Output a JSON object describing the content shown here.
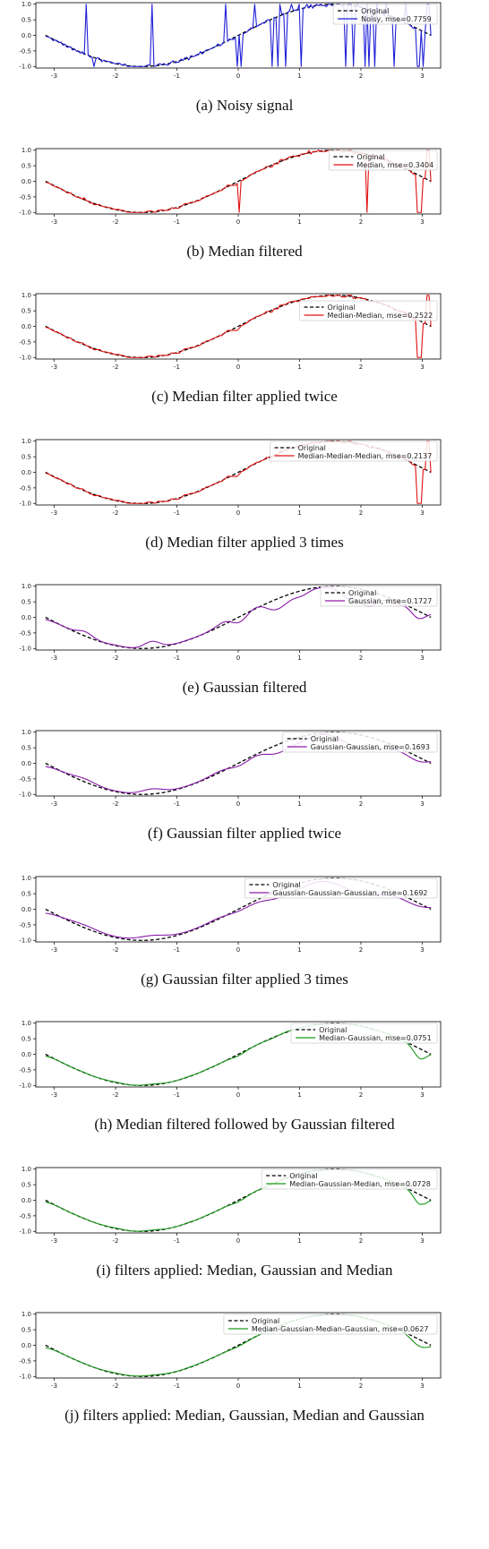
{
  "chart_data": [
    {
      "type": "line",
      "caption": "(a) Noisy signal",
      "xlim": [
        -3.3,
        3.3
      ],
      "ylim": [
        -1.05,
        1.05
      ],
      "xticks": [
        "-3",
        "-2",
        "-1",
        "0",
        "1",
        "2",
        "3"
      ],
      "yticks": [
        "-1.0",
        "-0.5",
        "0.0",
        "0.5",
        "1.0"
      ],
      "legend_position": "top-right",
      "series": [
        {
          "name": "Original",
          "style": "dashed",
          "color": "#000000"
        },
        {
          "name": "Noisy, mse=0.7759",
          "style": "solid",
          "color": "#1f1fd8",
          "filter": "noisy"
        }
      ]
    },
    {
      "type": "line",
      "caption": "(b) Median filtered",
      "xlim": [
        -3.3,
        3.3
      ],
      "ylim": [
        -1.05,
        1.05
      ],
      "xticks": [
        "-3",
        "-2",
        "-1",
        "0",
        "1",
        "2",
        "3"
      ],
      "yticks": [
        "-1.0",
        "-0.5",
        "0.0",
        "0.5",
        "1.0"
      ],
      "legend_position": "top-right",
      "series": [
        {
          "name": "Original",
          "style": "dashed",
          "color": "#000000"
        },
        {
          "name": "Median, mse=0.3404",
          "style": "solid",
          "color": "#e01010",
          "filter": "median1"
        }
      ]
    },
    {
      "type": "line",
      "caption": "(c) Median filter applied twice",
      "xlim": [
        -3.3,
        3.3
      ],
      "ylim": [
        -1.05,
        1.05
      ],
      "xticks": [
        "-3",
        "-2",
        "-1",
        "0",
        "1",
        "2",
        "3"
      ],
      "yticks": [
        "-1.0",
        "-0.5",
        "0.0",
        "0.5",
        "1.0"
      ],
      "legend_position": "right",
      "series": [
        {
          "name": "Original",
          "style": "dashed",
          "color": "#000000"
        },
        {
          "name": "Median-Median, mse=0.2522",
          "style": "solid",
          "color": "#e01010",
          "filter": "median2"
        }
      ]
    },
    {
      "type": "line",
      "caption": "(d) Median filter applied 3 times",
      "xlim": [
        -3.3,
        3.3
      ],
      "ylim": [
        -1.05,
        1.05
      ],
      "xticks": [
        "-3",
        "-2",
        "-1",
        "0",
        "1",
        "2",
        "3"
      ],
      "yticks": [
        "-1.0",
        "-0.5",
        "0.0",
        "0.5",
        "1.0"
      ],
      "legend_position": "top-right",
      "series": [
        {
          "name": "Original",
          "style": "dashed",
          "color": "#000000"
        },
        {
          "name": "Median-Median-Median, mse=0.2137",
          "style": "solid",
          "color": "#e01010",
          "filter": "median3"
        }
      ]
    },
    {
      "type": "line",
      "caption": "(e) Gaussian filtered",
      "xlim": [
        -3.3,
        3.3
      ],
      "ylim": [
        -1.05,
        1.05
      ],
      "xticks": [
        "-3",
        "-2",
        "-1",
        "0",
        "1",
        "2",
        "3"
      ],
      "yticks": [
        "-1.0",
        "-0.5",
        "0.0",
        "0.5",
        "1.0"
      ],
      "legend_position": "top-right",
      "series": [
        {
          "name": "Original",
          "style": "dashed",
          "color": "#000000"
        },
        {
          "name": "Gaussian, mse=0.1727",
          "style": "solid",
          "color": "#8a1aa8",
          "filter": "gauss1"
        }
      ]
    },
    {
      "type": "line",
      "caption": "(f) Gaussian filter applied twice",
      "xlim": [
        -3.3,
        3.3
      ],
      "ylim": [
        -1.05,
        1.05
      ],
      "xticks": [
        "-3",
        "-2",
        "-1",
        "0",
        "1",
        "2",
        "3"
      ],
      "yticks": [
        "-1.0",
        "-0.5",
        "0.0",
        "0.5",
        "1.0"
      ],
      "legend_position": "top-right",
      "series": [
        {
          "name": "Original",
          "style": "dashed",
          "color": "#000000"
        },
        {
          "name": "Gaussian-Gaussian, mse=0.1693",
          "style": "solid",
          "color": "#8a1aa8",
          "filter": "gauss2"
        }
      ]
    },
    {
      "type": "line",
      "caption": "(g) Gaussian filter applied 3 times",
      "xlim": [
        -3.3,
        3.3
      ],
      "ylim": [
        -1.05,
        1.05
      ],
      "xticks": [
        "-3",
        "-2",
        "-1",
        "0",
        "1",
        "2",
        "3"
      ],
      "yticks": [
        "-1.0",
        "-0.5",
        "0.0",
        "0.5",
        "1.0"
      ],
      "legend_position": "top-right",
      "series": [
        {
          "name": "Original",
          "style": "dashed",
          "color": "#000000"
        },
        {
          "name": "Gaussian-Gaussian-Gaussian, mse=0.1692",
          "style": "solid",
          "color": "#8a1aa8",
          "filter": "gauss3"
        }
      ]
    },
    {
      "type": "line",
      "caption": "(h) Median filtered followed by Gaussian filtered",
      "xlim": [
        -3.3,
        3.3
      ],
      "ylim": [
        -1.05,
        1.05
      ],
      "xticks": [
        "-3",
        "-2",
        "-1",
        "0",
        "1",
        "2",
        "3"
      ],
      "yticks": [
        "-1.0",
        "-0.5",
        "0.0",
        "0.5",
        "1.0"
      ],
      "legend_position": "top-right",
      "series": [
        {
          "name": "Original",
          "style": "dashed",
          "color": "#000000"
        },
        {
          "name": "Median-Gaussian, mse=0.0751",
          "style": "solid",
          "color": "#1a9a1a",
          "filter": "mg"
        }
      ]
    },
    {
      "type": "line",
      "caption": "(i) filters applied: Median, Gaussian and Median",
      "xlim": [
        -3.3,
        3.3
      ],
      "ylim": [
        -1.05,
        1.05
      ],
      "xticks": [
        "-3",
        "-2",
        "-1",
        "0",
        "1",
        "2",
        "3"
      ],
      "yticks": [
        "-1.0",
        "-0.5",
        "0.0",
        "0.5",
        "1.0"
      ],
      "legend_position": "top-right",
      "series": [
        {
          "name": "Original",
          "style": "dashed",
          "color": "#000000"
        },
        {
          "name": "Median-Gaussian-Median, mse=0.0728",
          "style": "solid",
          "color": "#1a9a1a",
          "filter": "mgm"
        }
      ]
    },
    {
      "type": "line",
      "caption": "(j) filters applied: Median, Gaussian, Median and Gaussian",
      "xlim": [
        -3.3,
        3.3
      ],
      "ylim": [
        -1.05,
        1.05
      ],
      "xticks": [
        "-3",
        "-2",
        "-1",
        "0",
        "1",
        "2",
        "3"
      ],
      "yticks": [
        "-1.0",
        "-0.5",
        "0.0",
        "0.5",
        "1.0"
      ],
      "legend_position": "top-right",
      "series": [
        {
          "name": "Original",
          "style": "dashed",
          "color": "#000000"
        },
        {
          "name": "Median-Gaussian-Median-Gaussian, mse=0.0627",
          "style": "solid",
          "color": "#1a9a1a",
          "filter": "mgmg"
        }
      ]
    }
  ]
}
